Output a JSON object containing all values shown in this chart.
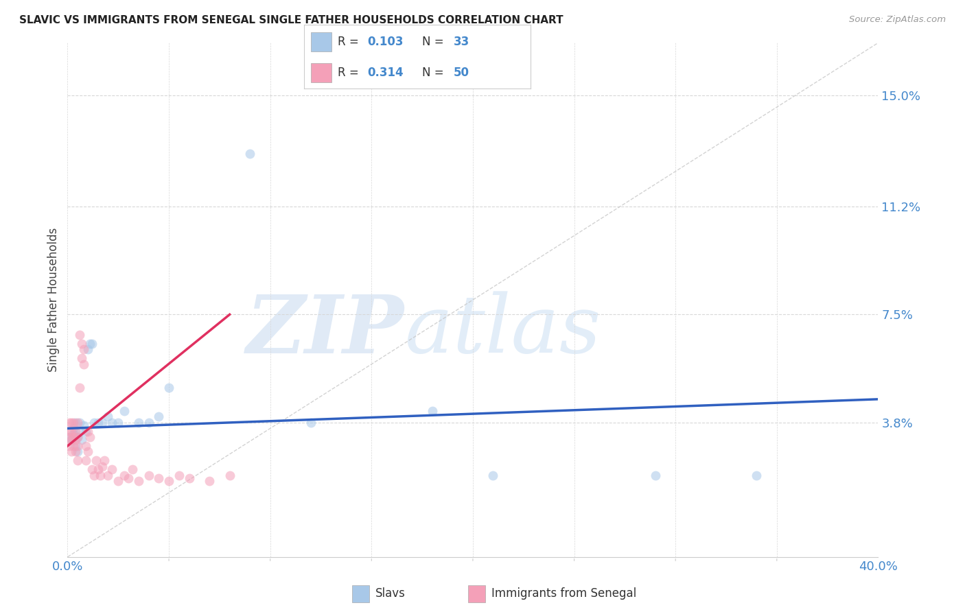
{
  "title": "SLAVIC VS IMMIGRANTS FROM SENEGAL SINGLE FATHER HOUSEHOLDS CORRELATION CHART",
  "source": "Source: ZipAtlas.com",
  "ylabel": "Single Father Households",
  "ytick_labels": [
    "15.0%",
    "11.2%",
    "7.5%",
    "3.8%"
  ],
  "ytick_values": [
    0.15,
    0.112,
    0.075,
    0.038
  ],
  "xlim": [
    0.0,
    0.4
  ],
  "ylim": [
    -0.008,
    0.168
  ],
  "slavs_color": "#a8c8e8",
  "senegal_color": "#f4a0b8",
  "trend_slavs_color": "#3060c0",
  "trend_senegal_color": "#e03060",
  "diagonal_color": "#c8c8c8",
  "R_slavs": 0.103,
  "N_slavs": 33,
  "R_senegal": 0.314,
  "N_senegal": 50,
  "slavs_x": [
    0.001,
    0.002,
    0.003,
    0.003,
    0.004,
    0.004,
    0.005,
    0.005,
    0.006,
    0.006,
    0.007,
    0.008,
    0.009,
    0.01,
    0.011,
    0.012,
    0.013,
    0.015,
    0.017,
    0.02,
    0.022,
    0.025,
    0.028,
    0.035,
    0.04,
    0.045,
    0.05,
    0.09,
    0.12,
    0.18,
    0.21,
    0.29,
    0.34
  ],
  "slavs_y": [
    0.033,
    0.032,
    0.034,
    0.036,
    0.03,
    0.038,
    0.028,
    0.033,
    0.035,
    0.038,
    0.032,
    0.037,
    0.035,
    0.063,
    0.065,
    0.065,
    0.038,
    0.038,
    0.038,
    0.04,
    0.038,
    0.038,
    0.042,
    0.038,
    0.038,
    0.04,
    0.05,
    0.13,
    0.038,
    0.042,
    0.02,
    0.02,
    0.02
  ],
  "senegal_x": [
    0.001,
    0.001,
    0.001,
    0.001,
    0.002,
    0.002,
    0.002,
    0.002,
    0.003,
    0.003,
    0.003,
    0.004,
    0.004,
    0.004,
    0.005,
    0.005,
    0.005,
    0.005,
    0.006,
    0.006,
    0.007,
    0.007,
    0.008,
    0.008,
    0.009,
    0.009,
    0.01,
    0.01,
    0.011,
    0.012,
    0.013,
    0.014,
    0.015,
    0.016,
    0.017,
    0.018,
    0.02,
    0.022,
    0.025,
    0.028,
    0.03,
    0.032,
    0.035,
    0.04,
    0.045,
    0.05,
    0.055,
    0.06,
    0.07,
    0.08
  ],
  "senegal_y": [
    0.03,
    0.033,
    0.035,
    0.038,
    0.028,
    0.032,
    0.035,
    0.038,
    0.03,
    0.033,
    0.038,
    0.028,
    0.032,
    0.035,
    0.025,
    0.03,
    0.033,
    0.038,
    0.05,
    0.068,
    0.06,
    0.065,
    0.058,
    0.063,
    0.025,
    0.03,
    0.028,
    0.035,
    0.033,
    0.022,
    0.02,
    0.025,
    0.022,
    0.02,
    0.023,
    0.025,
    0.02,
    0.022,
    0.018,
    0.02,
    0.019,
    0.022,
    0.018,
    0.02,
    0.019,
    0.018,
    0.02,
    0.019,
    0.018,
    0.02
  ],
  "marker_size": 100,
  "alpha": 0.55,
  "watermark_zip": "ZIP",
  "watermark_atlas": "atlas",
  "background_color": "#ffffff",
  "grid_color": "#d8d8d8",
  "legend_box_color": "#e8e8e8"
}
